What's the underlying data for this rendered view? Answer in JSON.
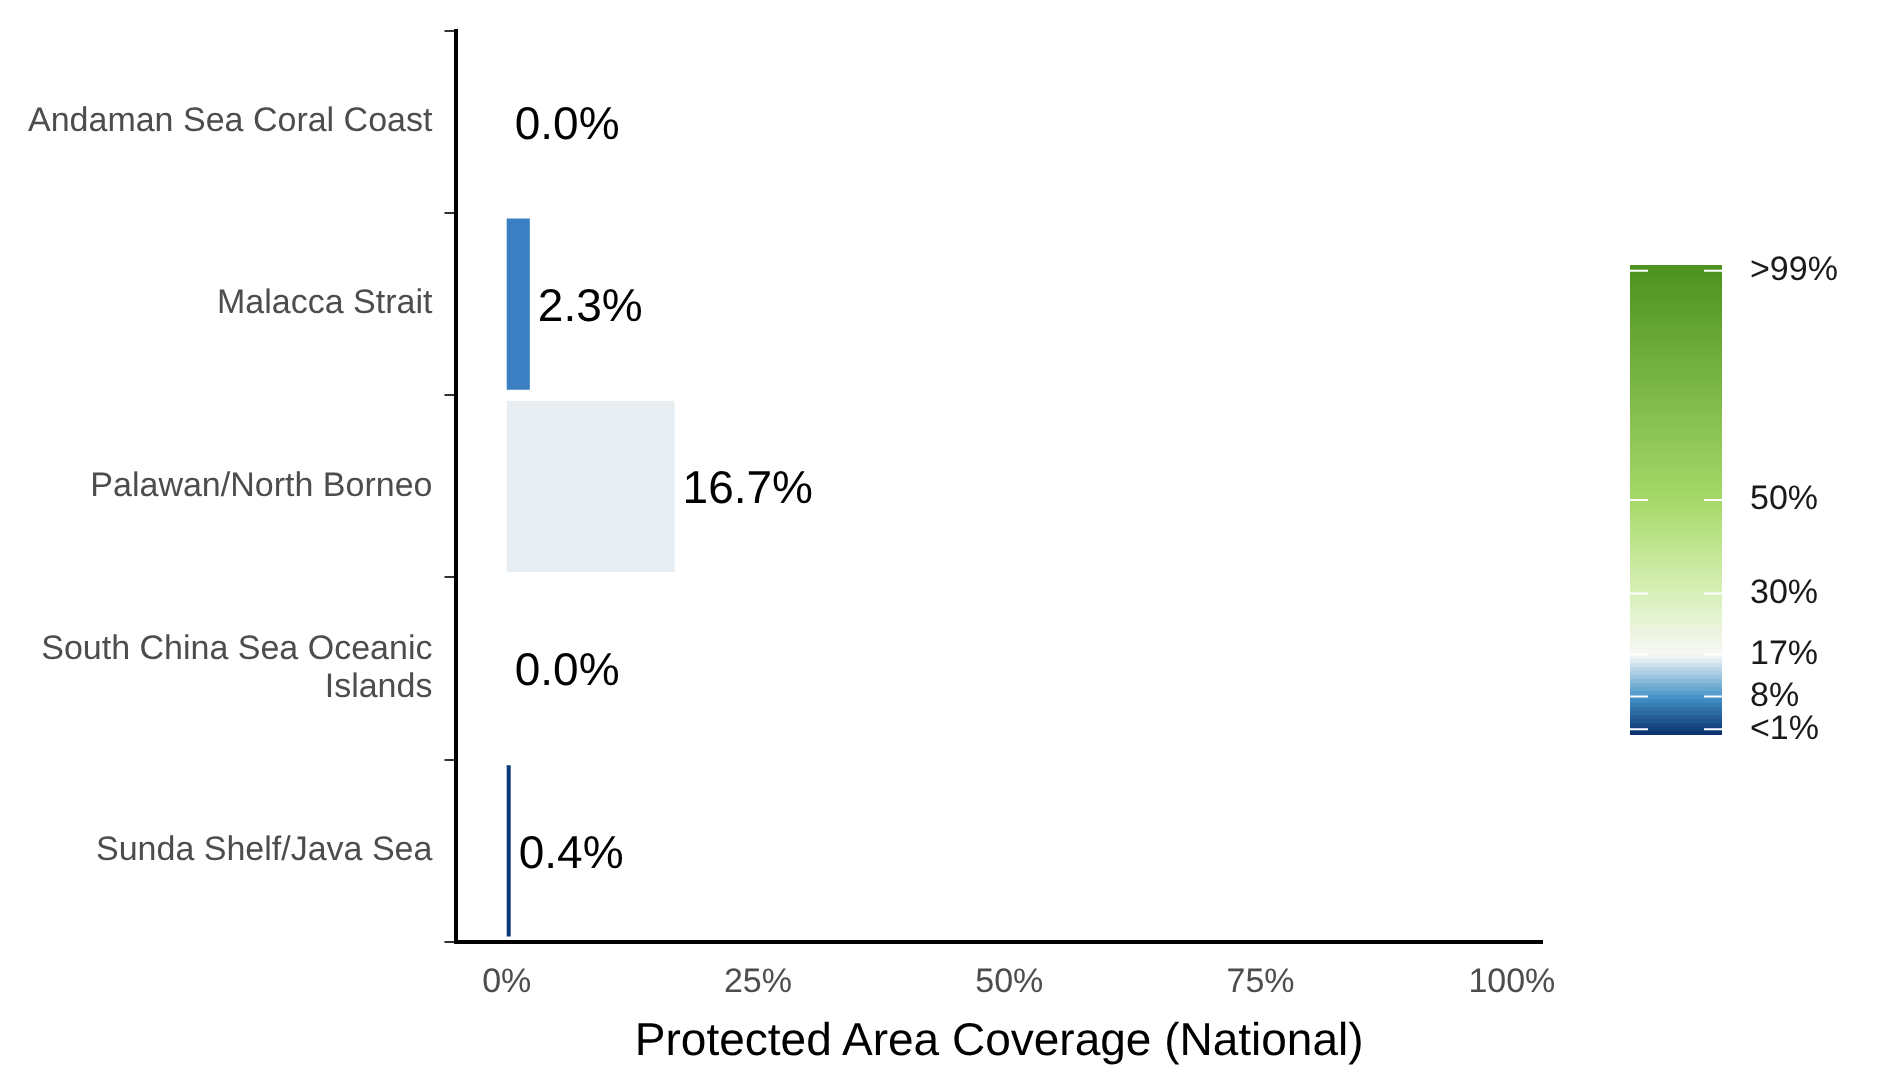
{
  "chart_data": {
    "type": "bar",
    "orientation": "horizontal",
    "xlabel": "Protected Area Coverage (National)",
    "categories": [
      "Andaman Sea Coral Coast",
      "Malacca Strait",
      "Palawan/North Borneo",
      "South China Sea Oceanic Islands",
      "Sunda Shelf/Java Sea"
    ],
    "values": [
      0,
      2.3,
      16.7,
      0,
      0.4
    ],
    "value_labels": [
      "0.0%",
      "2.3%",
      "16.7%",
      "0.0%",
      "0.4%"
    ],
    "colors": [
      "#08306b",
      "#3a7fc1",
      "#e8edf2",
      "#08306b",
      "#0a3a7a"
    ],
    "xlim": [
      -5,
      103
    ],
    "xticks": [
      {
        "value": 0,
        "label": "0%"
      },
      {
        "value": 25,
        "label": "25%"
      },
      {
        "value": 50,
        "label": "50%"
      },
      {
        "value": 75,
        "label": "75%"
      },
      {
        "value": 100,
        "label": "100%"
      }
    ],
    "clim": [
      0,
      100
    ],
    "cticks": [
      {
        "value": 1,
        "label": "<1%"
      },
      {
        "value": 8,
        "label": "8%"
      },
      {
        "value": 17,
        "label": "17%"
      },
      {
        "value": 30,
        "label": "30%"
      },
      {
        "value": 50,
        "label": "50%"
      },
      {
        "value": 99,
        "label": ">99%"
      }
    ],
    "grid": false,
    "legend": false
  }
}
